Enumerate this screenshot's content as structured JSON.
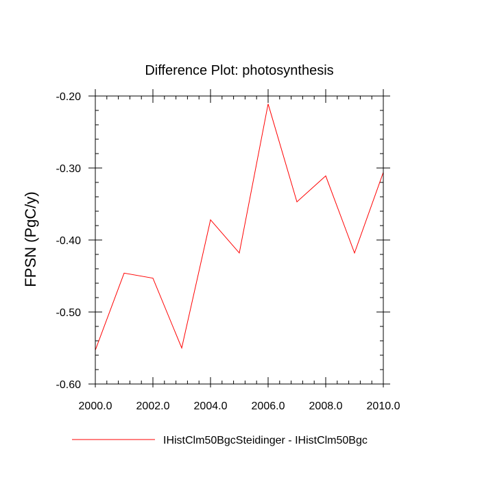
{
  "chart_data": {
    "type": "line",
    "title": "Difference Plot: photosynthesis",
    "xlabel": "",
    "ylabel": "FPSN  (PgC/y)",
    "xlim": [
      2000.0,
      2010.0
    ],
    "ylim": [
      -0.6,
      -0.2
    ],
    "x_ticks": [
      2000.0,
      2002.0,
      2004.0,
      2006.0,
      2008.0,
      2010.0
    ],
    "x_tick_labels": [
      "2000.0",
      "2002.0",
      "2004.0",
      "2006.0",
      "2008.0",
      "2010.0"
    ],
    "y_ticks": [
      -0.6,
      -0.5,
      -0.4,
      -0.3,
      -0.2
    ],
    "y_tick_labels": [
      "-0.60",
      "-0.50",
      "-0.40",
      "-0.30",
      "-0.20"
    ],
    "grid": false,
    "legend_position": "bottom",
    "series": [
      {
        "name": "IHistClm50BgcSteidinger - IHistClm50Bgc",
        "color": "#ff0000",
        "x": [
          2000,
          2001,
          2002,
          2003,
          2004,
          2005,
          2006,
          2007,
          2008,
          2009,
          2010
        ],
        "y": [
          -0.553,
          -0.446,
          -0.453,
          -0.55,
          -0.372,
          -0.418,
          -0.211,
          -0.347,
          -0.311,
          -0.418,
          -0.306
        ]
      }
    ]
  }
}
